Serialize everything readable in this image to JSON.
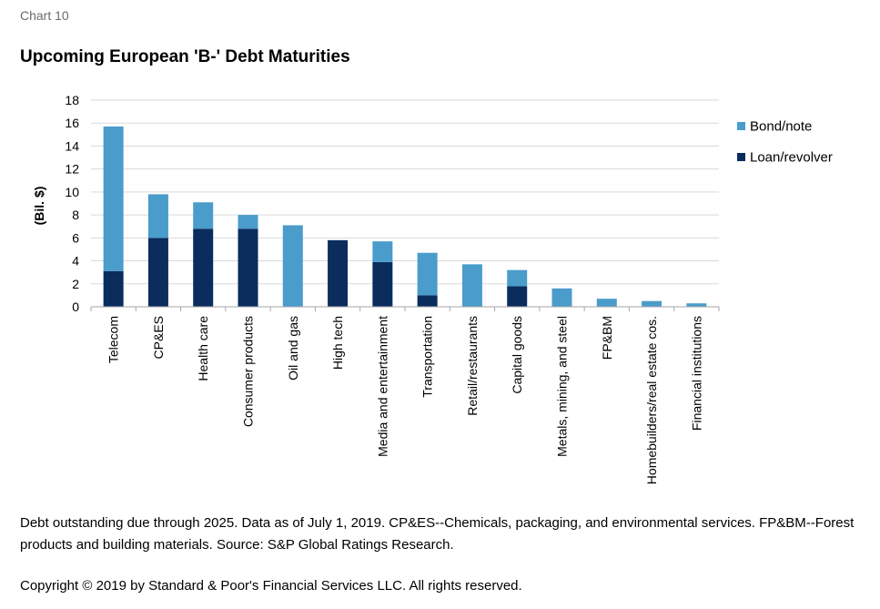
{
  "header": {
    "chart_label": "Chart 10",
    "title": "Upcoming European 'B-' Debt Maturities"
  },
  "footer": {
    "note": "Debt outstanding due through 2025. Data as of July 1, 2019. CP&ES--Chemicals, packaging, and environmental services. FP&BM--Forest products and building materials. Source: S&P Global Ratings Research.",
    "copyright": "Copyright © 2019 by Standard & Poor's Financial Services LLC. All rights reserved."
  },
  "colors": {
    "bond": "#4a9ccb",
    "loan": "#0a2d5e",
    "grid": "#d9d9d9",
    "axis": "#a6a6a6"
  },
  "chart_data": {
    "type": "bar",
    "stacked": true,
    "title": "Upcoming European 'B-' Debt Maturities",
    "xlabel": "",
    "ylabel": "(Bil. $)",
    "ylim": [
      0,
      18
    ],
    "yticks": [
      0,
      2,
      4,
      6,
      8,
      10,
      12,
      14,
      16,
      18
    ],
    "grid": true,
    "legend_position": "right",
    "categories": [
      "Telecom",
      "CP&ES",
      "Health care",
      "Consumer products",
      "Oil and gas",
      "High tech",
      "Media and entertainment",
      "Transportation",
      "Retail/restaurants",
      "Capital goods",
      "Metals, mining, and steel",
      "FP&BM",
      "Homebuilders/real estate cos.",
      "Financial institutions"
    ],
    "series": [
      {
        "name": "Loan/revolver",
        "color": "#0a2d5e",
        "values": [
          3.1,
          6.0,
          6.8,
          6.8,
          0.0,
          5.8,
          3.9,
          1.0,
          0.0,
          1.8,
          0.0,
          0.0,
          0.0,
          0.0
        ]
      },
      {
        "name": "Bond/note",
        "color": "#4a9ccb",
        "values": [
          12.6,
          3.8,
          2.3,
          1.2,
          7.1,
          0.0,
          1.8,
          3.7,
          3.7,
          1.4,
          1.6,
          0.7,
          0.5,
          0.3
        ]
      }
    ],
    "legend_order": [
      "Bond/note",
      "Loan/revolver"
    ]
  }
}
